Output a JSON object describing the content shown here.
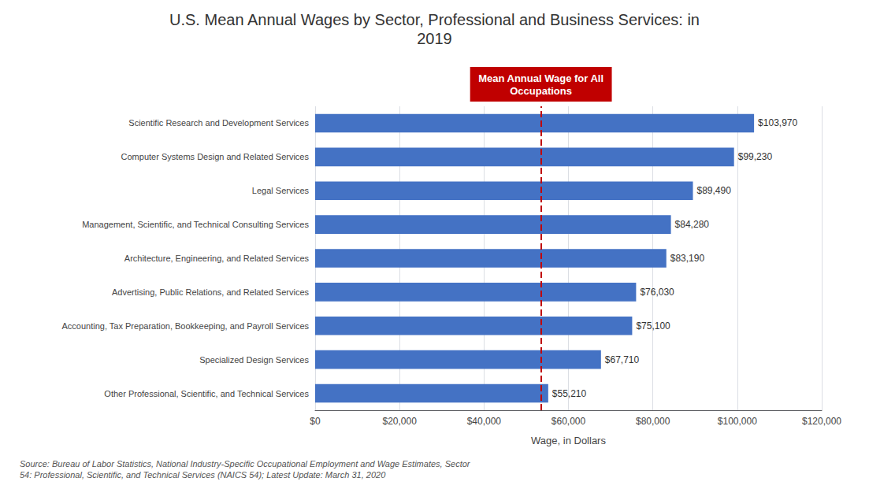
{
  "chart_data": {
    "type": "bar",
    "orientation": "horizontal",
    "title": "U.S. Mean Annual Wages by Sector, Professional and Business Services: in\n2019",
    "categories": [
      "Other Professional, Scientific, and Technical Services",
      "Specialized Design Services",
      "Accounting, Tax Preparation, Bookkeeping, and Payroll Services",
      "Advertising, Public Relations, and Related Services",
      "Architecture, Engineering, and Related Services",
      "Management, Scientific, and Technical Consulting Services",
      "Legal Services",
      "Computer Systems Design and Related Services",
      "Scientific Research and Development Services"
    ],
    "values": [
      55210,
      67710,
      75100,
      76030,
      83190,
      84280,
      89490,
      99230,
      103970
    ],
    "value_labels": [
      "$55,210",
      "$67,710",
      "$75,100",
      "$76,030",
      "$83,190",
      "$84,280",
      "$89,490",
      "$99,230",
      "$103,970"
    ],
    "data_labels": true,
    "color": "#4472C4",
    "xlabel": "Wage, in Dollars",
    "xlim": [
      0,
      120000
    ],
    "xticks": [
      {
        "value": 0,
        "label": "$0"
      },
      {
        "value": 20000,
        "label": "$20,000"
      },
      {
        "value": 40000,
        "label": "$40,000"
      },
      {
        "value": 60000,
        "label": "$60,000"
      },
      {
        "value": 80000,
        "label": "$80,000"
      },
      {
        "value": 100000,
        "label": "$100,000"
      },
      {
        "value": 120000,
        "label": "$120,000"
      }
    ],
    "grid": true,
    "mean_line": {
      "value": 53490,
      "label": "Mean Annual Wage for All\nOccupations",
      "color": "#C00000"
    },
    "source": "Source: Bureau of Labor Statistics, National Industry-Specific Occupational Employment and Wage Estimates, Sector\n54: Professional, Scientific, and Technical Services (NAICS 54); Latest Update: March 31, 2020"
  }
}
